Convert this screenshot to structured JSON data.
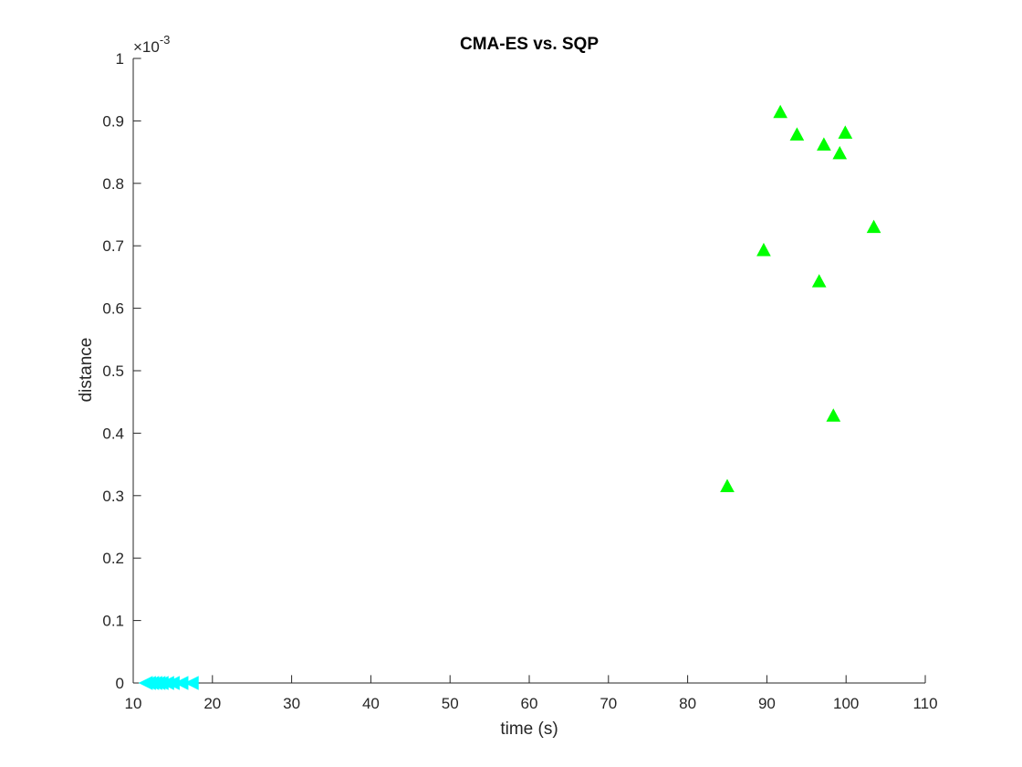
{
  "chart_data": {
    "type": "scatter",
    "title": "CMA-ES vs. SQP",
    "xlabel": "time (s)",
    "ylabel": "distance",
    "xlim": [
      10,
      110
    ],
    "ylim": [
      0,
      0.001
    ],
    "x_ticks": [
      "10",
      "20",
      "30",
      "40",
      "50",
      "60",
      "70",
      "80",
      "90",
      "100",
      "110"
    ],
    "y_ticks": [
      "0",
      "0.1",
      "0.2",
      "0.3",
      "0.4",
      "0.5",
      "0.6",
      "0.7",
      "0.8",
      "0.9",
      "1"
    ],
    "y_exponent_base": "×10",
    "y_exponent_power": "-3",
    "grid": false,
    "series": [
      {
        "marker": "triangle-up",
        "color": "#00ff00",
        "points": [
          {
            "x": 85.0,
            "y": 0.000315
          },
          {
            "x": 89.6,
            "y": 0.000693
          },
          {
            "x": 91.7,
            "y": 0.000914
          },
          {
            "x": 93.8,
            "y": 0.000878
          },
          {
            "x": 96.6,
            "y": 0.000643
          },
          {
            "x": 97.2,
            "y": 0.000862
          },
          {
            "x": 98.4,
            "y": 0.000428
          },
          {
            "x": 99.2,
            "y": 0.000848
          },
          {
            "x": 99.9,
            "y": 0.000881
          },
          {
            "x": 103.5,
            "y": 0.00073
          }
        ]
      },
      {
        "marker": "triangle-left",
        "color": "#00ffff",
        "points": [
          {
            "x": 11.6,
            "y": 0.0
          },
          {
            "x": 12.0,
            "y": 0.0
          },
          {
            "x": 12.4,
            "y": 0.0
          },
          {
            "x": 12.8,
            "y": 0.0
          },
          {
            "x": 13.2,
            "y": 0.0
          },
          {
            "x": 13.6,
            "y": 0.0
          },
          {
            "x": 14.3,
            "y": 0.0
          },
          {
            "x": 15.0,
            "y": 0.0
          },
          {
            "x": 16.1,
            "y": 0.0
          },
          {
            "x": 17.4,
            "y": 0.0
          }
        ]
      }
    ]
  }
}
